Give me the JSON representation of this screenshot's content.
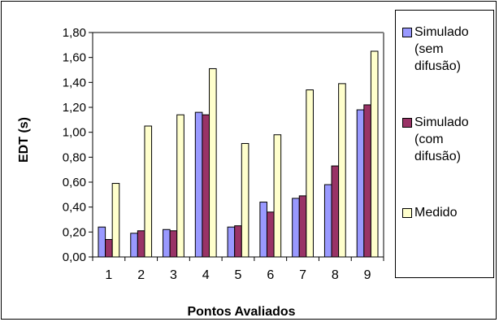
{
  "colors": {
    "simulado_sem": "#9999FF",
    "simulado_com": "#993366",
    "medido": "#FFFFCC",
    "plot_bg": "#FFFFFF",
    "grid": "#808080"
  },
  "chart_data": {
    "type": "bar",
    "xlabel": "Pontos Avaliados",
    "ylabel": "EDT (s)",
    "categories": [
      "1",
      "2",
      "3",
      "4",
      "5",
      "6",
      "7",
      "8",
      "9"
    ],
    "ylim": [
      0,
      1.8
    ],
    "yticks": [
      "0,00",
      "0,20",
      "0,40",
      "0,60",
      "0,80",
      "1,00",
      "1,20",
      "1,40",
      "1,60",
      "1,80"
    ],
    "grid": "none",
    "legend_position": "right",
    "series": [
      {
        "name": "Simulado\n(sem\ndifusão)",
        "color_key": "simulado_sem",
        "values": [
          0.24,
          0.19,
          0.22,
          1.16,
          0.24,
          0.44,
          0.47,
          0.58,
          1.18
        ]
      },
      {
        "name": "Simulado\n(com\ndifusão)",
        "color_key": "simulado_com",
        "values": [
          0.14,
          0.21,
          0.21,
          1.14,
          0.25,
          0.36,
          0.49,
          0.73,
          1.22
        ]
      },
      {
        "name": "Medido",
        "color_key": "medido",
        "values": [
          0.59,
          1.05,
          1.14,
          1.51,
          0.91,
          0.98,
          1.34,
          1.39,
          1.65
        ]
      }
    ]
  }
}
